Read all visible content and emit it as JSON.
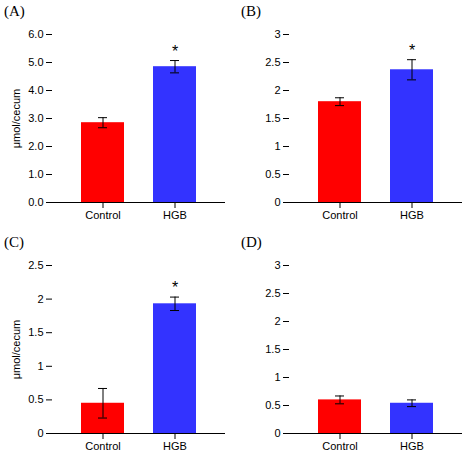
{
  "chart_data": [
    {
      "type": "bar",
      "title": "(A)",
      "categories": [
        "Control",
        "HGB"
      ],
      "values": [
        2.85,
        4.85
      ],
      "errors": [
        0.18,
        0.22
      ],
      "colors": [
        "#ff0000",
        "#3333ff"
      ],
      "ylabel": "μmol/cecum",
      "ylim": [
        0,
        6.0
      ],
      "yticks": [
        {
          "value": 0.0,
          "label": "0.0"
        },
        {
          "value": 1.0,
          "label": "1.0"
        },
        {
          "value": 2.0,
          "label": "2.0"
        },
        {
          "value": 3.0,
          "label": "3.0"
        },
        {
          "value": 4.0,
          "label": "4.0"
        },
        {
          "value": 5.0,
          "label": "5.0"
        },
        {
          "value": 6.0,
          "label": "6.0"
        }
      ],
      "annotations": [
        {
          "text": "*",
          "category": "HGB"
        }
      ]
    },
    {
      "type": "bar",
      "title": "(B)",
      "categories": [
        "Control",
        "HGB"
      ],
      "values": [
        1.8,
        2.37
      ],
      "errors": [
        0.07,
        0.18
      ],
      "colors": [
        "#ff0000",
        "#3333ff"
      ],
      "ylim": [
        0,
        3.0
      ],
      "yticks": [
        0,
        0.5,
        1,
        1.5,
        2,
        2.5,
        3
      ],
      "annotations": [
        {
          "text": "*",
          "category": "HGB"
        }
      ]
    },
    {
      "type": "bar",
      "title": "(C)",
      "categories": [
        "Control",
        "HGB"
      ],
      "values": [
        0.45,
        1.93
      ],
      "errors": [
        0.22,
        0.1
      ],
      "colors": [
        "#ff0000",
        "#3333ff"
      ],
      "ylabel": "μmol/cecum",
      "ylim": [
        0,
        2.5
      ],
      "yticks": [
        0,
        0.5,
        1,
        1.5,
        2,
        2.5
      ],
      "annotations": [
        {
          "text": "*",
          "category": "HGB"
        }
      ]
    },
    {
      "type": "bar",
      "title": "(D)",
      "categories": [
        "Control",
        "HGB"
      ],
      "values": [
        0.6,
        0.54
      ],
      "errors": [
        0.07,
        0.06
      ],
      "colors": [
        "#ff0000",
        "#3333ff"
      ],
      "ylim": [
        0,
        3.0
      ],
      "yticks": [
        0,
        0.5,
        1,
        1.5,
        2,
        2.5,
        3
      ]
    }
  ]
}
